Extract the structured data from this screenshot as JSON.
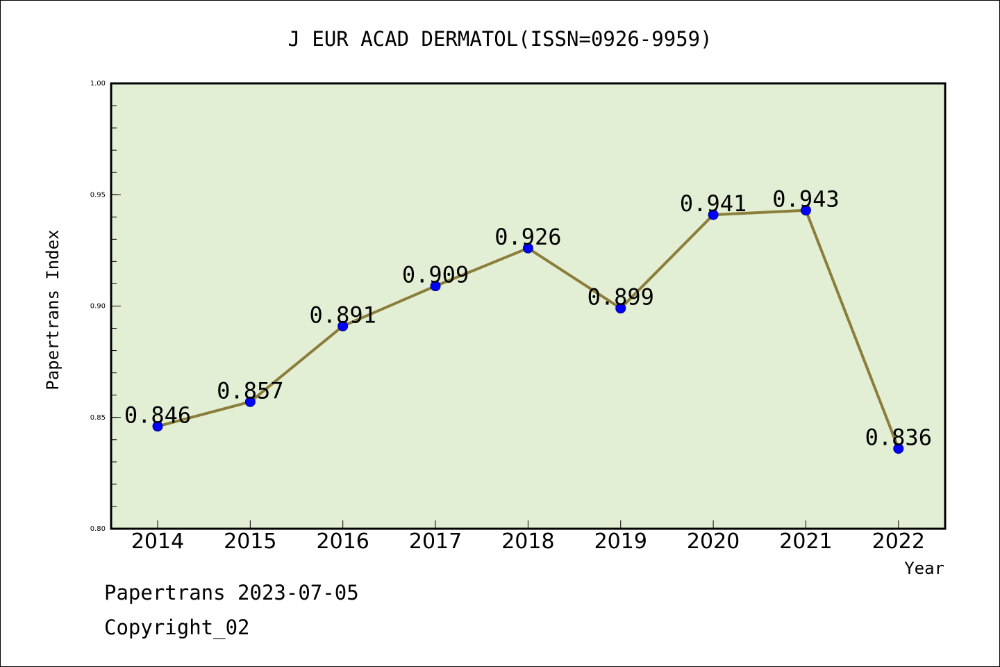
{
  "chart_data": {
    "type": "line",
    "title": "J EUR ACAD DERMATOL(ISSN=0926-9959)",
    "xlabel": "Year",
    "ylabel": "Papertrans Index",
    "categories": [
      "2014",
      "2015",
      "2016",
      "2017",
      "2018",
      "2019",
      "2020",
      "2021",
      "2022"
    ],
    "series": [
      {
        "values": [
          0.846,
          0.857,
          0.891,
          0.909,
          0.926,
          0.899,
          0.941,
          0.943,
          0.836
        ]
      }
    ],
    "data_labels": [
      "0.846",
      "0.857",
      "0.891",
      "0.909",
      "0.926",
      "0.899",
      "0.941",
      "0.943",
      "0.836"
    ],
    "ylim": [
      0.8,
      1.0
    ],
    "yticks": [
      "0.80",
      "0.85",
      "0.90",
      "0.95",
      "1.00"
    ],
    "grid": false,
    "colors": {
      "plot_background": "#e2efd5",
      "line": "#8b7d3a",
      "marker": "#0000ff"
    }
  },
  "footer": {
    "line1": "Papertrans 2023-07-05",
    "line2": "Copyright_02"
  }
}
